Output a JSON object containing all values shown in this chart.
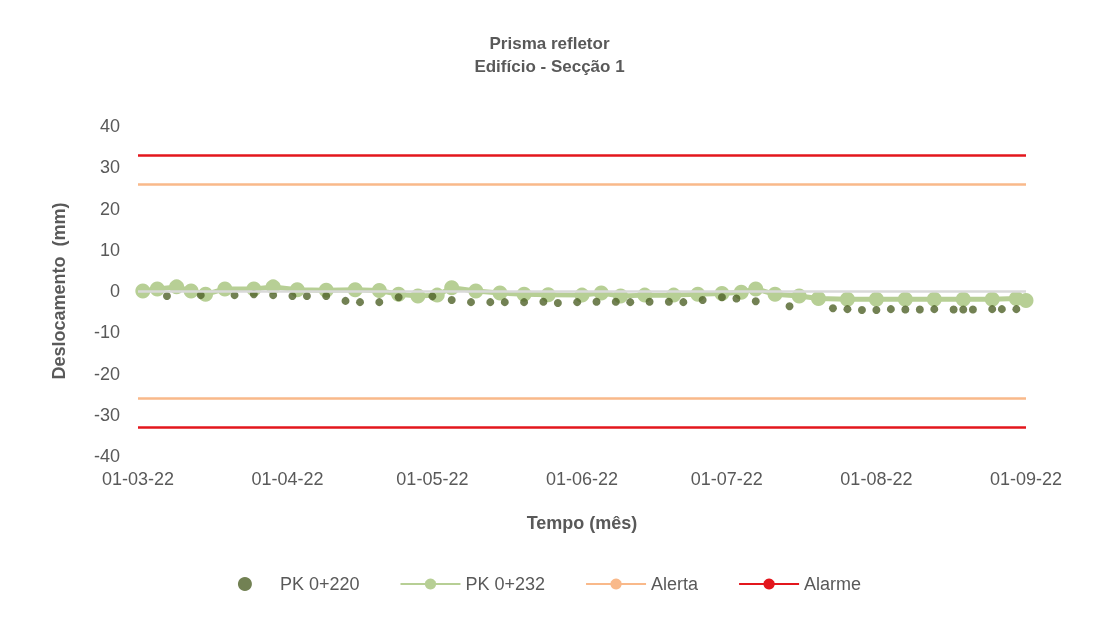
{
  "chart_data": {
    "type": "line",
    "title": "Prisma refletor",
    "subtitle": "Edifício - Secção 1",
    "xlabel": "Tempo (mês)",
    "ylabel": "Deslocamento  (mm)",
    "xlim": [
      "2022-03-01",
      "2022-09-01"
    ],
    "xticks": [
      {
        "value": "2022-03-01",
        "label": "01-03-22"
      },
      {
        "value": "2022-04-01",
        "label": "01-04-22"
      },
      {
        "value": "2022-05-01",
        "label": "01-05-22"
      },
      {
        "value": "2022-06-01",
        "label": "01-06-22"
      },
      {
        "value": "2022-07-01",
        "label": "01-07-22"
      },
      {
        "value": "2022-08-01",
        "label": "01-08-22"
      },
      {
        "value": "2022-09-01",
        "label": "01-09-22"
      }
    ],
    "ylim": [
      -40,
      40
    ],
    "yticks": [
      -40,
      -30,
      -20,
      -10,
      0,
      10,
      20,
      30,
      40
    ],
    "grid": false,
    "legend": "bottom",
    "series": [
      {
        "name": "PK 0+220",
        "type": "scatter",
        "marker": "circle",
        "color": "#4f6228",
        "x": [
          "2022-03-07",
          "2022-03-14",
          "2022-03-21",
          "2022-03-25",
          "2022-03-29",
          "2022-04-02",
          "2022-04-05",
          "2022-04-09",
          "2022-04-13",
          "2022-04-16",
          "2022-04-20",
          "2022-04-24",
          "2022-05-01",
          "2022-05-05",
          "2022-05-09",
          "2022-05-13",
          "2022-05-16",
          "2022-05-20",
          "2022-05-24",
          "2022-05-27",
          "2022-05-31",
          "2022-06-04",
          "2022-06-08",
          "2022-06-11",
          "2022-06-15",
          "2022-06-19",
          "2022-06-22",
          "2022-06-26",
          "2022-06-30",
          "2022-07-03",
          "2022-07-07",
          "2022-07-14",
          "2022-07-23",
          "2022-07-26",
          "2022-07-29",
          "2022-08-01",
          "2022-08-04",
          "2022-08-07",
          "2022-08-10",
          "2022-08-13",
          "2022-08-17",
          "2022-08-19",
          "2022-08-21",
          "2022-08-25",
          "2022-08-27",
          "2022-08-30"
        ],
        "values": [
          -1.2,
          -1,
          -1,
          -0.8,
          -1,
          -1.2,
          -1.2,
          -1.2,
          -2.4,
          -2.7,
          -2.7,
          -1.5,
          -1.3,
          -2.2,
          -2.7,
          -2.7,
          -2.7,
          -2.7,
          -2.6,
          -2.9,
          -2.7,
          -2.6,
          -2.6,
          -2.7,
          -2.6,
          -2.6,
          -2.7,
          -2.2,
          -1.5,
          -1.8,
          -2.5,
          -3.7,
          -4.2,
          -4.4,
          -4.6,
          -4.6,
          -4.4,
          -4.5,
          -4.5,
          -4.4,
          -4.5,
          -4.5,
          -4.5,
          -4.4,
          -4.4,
          -4.4
        ]
      },
      {
        "name": "PK 0+232",
        "marker": "circle",
        "line_style": "solid",
        "color": "#b7cf95",
        "x": [
          "2022-03-02",
          "2022-03-05",
          "2022-03-09",
          "2022-03-12",
          "2022-03-15",
          "2022-03-19",
          "2022-03-25",
          "2022-03-29",
          "2022-04-03",
          "2022-04-09",
          "2022-04-15",
          "2022-04-20",
          "2022-04-24",
          "2022-04-28",
          "2022-05-02",
          "2022-05-05",
          "2022-05-10",
          "2022-05-15",
          "2022-05-20",
          "2022-05-25",
          "2022-06-01",
          "2022-06-05",
          "2022-06-09",
          "2022-06-14",
          "2022-06-20",
          "2022-06-25",
          "2022-06-30",
          "2022-07-04",
          "2022-07-07",
          "2022-07-11",
          "2022-07-16",
          "2022-07-20",
          "2022-07-26",
          "2022-08-01",
          "2022-08-07",
          "2022-08-13",
          "2022-08-19",
          "2022-08-25",
          "2022-08-30",
          "2022-09-01"
        ],
        "values": [
          0,
          0.5,
          1,
          0,
          -0.8,
          0.5,
          0.5,
          1,
          0.3,
          0.2,
          0.3,
          0.1,
          -0.8,
          -1.2,
          -1,
          0.8,
          0,
          -0.5,
          -0.8,
          -0.9,
          -1,
          -0.5,
          -1.2,
          -1,
          -1,
          -0.8,
          -0.6,
          -0.3,
          0.5,
          -0.8,
          -1.2,
          -1.8,
          -2,
          -2,
          -2,
          -2,
          -2,
          -2,
          -1.8,
          -2.3
        ]
      }
    ],
    "ref_lines": [
      {
        "axis": "y",
        "value": 0,
        "color": "#d9d9d9"
      },
      {
        "axis": "y",
        "value": 26,
        "label": "Alerta",
        "color": "#f9b98a"
      },
      {
        "axis": "y",
        "value": -26,
        "color": "#f9b98a"
      },
      {
        "axis": "y",
        "value": 33,
        "label": "Alarme",
        "color": "#e3161c"
      },
      {
        "axis": "y",
        "value": -33,
        "color": "#e3161c"
      }
    ]
  }
}
